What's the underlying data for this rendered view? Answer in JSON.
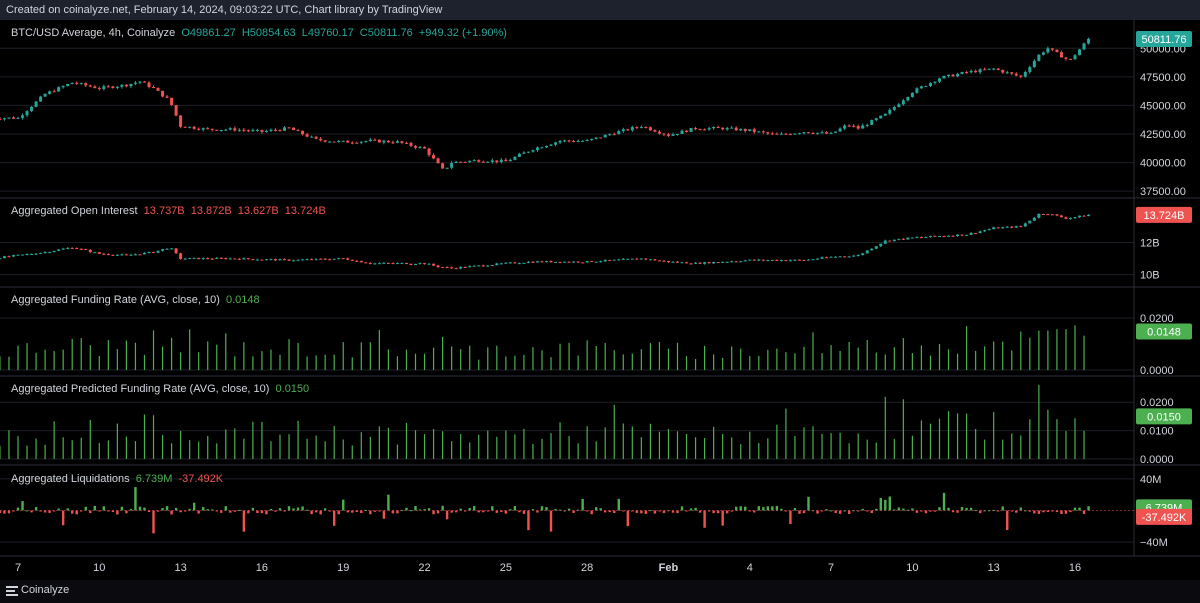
{
  "header": {
    "created_text": "Created on coinalyze.net, February 14, 2024, 09:03:22 UTC, Chart library by TradingView"
  },
  "footer": {
    "brand": "Coinalyze"
  },
  "colors": {
    "up": "#26a69a",
    "down": "#ef5350",
    "funding": "#4caf50",
    "grid": "#1c1f26",
    "background": "#000000"
  },
  "chart_data": [
    {
      "type": "candlestick",
      "title": "BTC/USD Average, 4h, Coinalyze",
      "legend": {
        "o": "O49861.27",
        "h": "H50854.63",
        "l": "L49760.17",
        "c": "C50811.76",
        "chg": "+949.32 (+1.90%)"
      },
      "yticks": [
        "50000.00",
        "47500.00",
        "45000.00",
        "42500.00",
        "40000.00",
        "37500.00"
      ],
      "ytick_values": [
        50000,
        47500,
        45000,
        42500,
        40000,
        37500
      ],
      "ylim": [
        37250,
        51250
      ],
      "last_label": "50811.76",
      "last_value": 50811.76,
      "close_path": [
        [
          6,
          43900
        ],
        [
          7,
          43900
        ],
        [
          8,
          46000
        ],
        [
          9,
          47000
        ],
        [
          10,
          46500
        ],
        [
          11,
          46800
        ],
        [
          11.5,
          47100
        ],
        [
          12,
          46500
        ],
        [
          12.6,
          45400
        ],
        [
          13,
          43200
        ],
        [
          14,
          42900
        ],
        [
          15,
          42900
        ],
        [
          16,
          42700
        ],
        [
          17,
          43000
        ],
        [
          18,
          42000
        ],
        [
          19,
          41800
        ],
        [
          20,
          41900
        ],
        [
          21,
          41800
        ],
        [
          22,
          41200
        ],
        [
          22.7,
          39300
        ],
        [
          23,
          40000
        ],
        [
          24,
          40200
        ],
        [
          25,
          40100
        ],
        [
          26,
          41200
        ],
        [
          27,
          41900
        ],
        [
          28,
          41900
        ],
        [
          29,
          42600
        ],
        [
          30,
          43200
        ],
        [
          31,
          42400
        ],
        [
          32,
          43000
        ],
        [
          33,
          43000
        ],
        [
          34,
          42800
        ],
        [
          35,
          42400
        ],
        [
          36,
          42700
        ],
        [
          37,
          42500
        ],
        [
          37.6,
          43300
        ],
        [
          38,
          43000
        ],
        [
          39,
          44200
        ],
        [
          40,
          46200
        ],
        [
          41,
          47400
        ],
        [
          42,
          47900
        ],
        [
          43,
          48200
        ],
        [
          44,
          47500
        ],
        [
          44.7,
          49500
        ],
        [
          45,
          50000
        ],
        [
          45.8,
          48900
        ],
        [
          46.5,
          50811.76
        ]
      ]
    },
    {
      "type": "candlestick",
      "title": "Aggregated Open Interest",
      "legend": {
        "o": "13.737B",
        "h": "13.872B",
        "l": "13.627B",
        "c": "13.724B"
      },
      "yticks": [
        "12B",
        "10B"
      ],
      "ytick_values": [
        12,
        10
      ],
      "ylim": [
        9.6,
        14.4
      ],
      "last_label": "13.724B",
      "last_value": 13.724,
      "close_path": [
        [
          6,
          11.0
        ],
        [
          8,
          11.4
        ],
        [
          9,
          11.7
        ],
        [
          10,
          11.3
        ],
        [
          11,
          11.2
        ],
        [
          12,
          11.4
        ],
        [
          12.6,
          11.7
        ],
        [
          13,
          11.0
        ],
        [
          15,
          11.0
        ],
        [
          17,
          10.9
        ],
        [
          19,
          11.0
        ],
        [
          20,
          10.7
        ],
        [
          22,
          10.7
        ],
        [
          22.5,
          10.5
        ],
        [
          23,
          10.4
        ],
        [
          25,
          10.7
        ],
        [
          26,
          10.8
        ],
        [
          28,
          10.8
        ],
        [
          30,
          11.0
        ],
        [
          31,
          10.8
        ],
        [
          32,
          10.7
        ],
        [
          34,
          10.9
        ],
        [
          36,
          10.9
        ],
        [
          37,
          11.1
        ],
        [
          38,
          11.2
        ],
        [
          39,
          12.1
        ],
        [
          40,
          12.3
        ],
        [
          41,
          12.4
        ],
        [
          42,
          12.5
        ],
        [
          43,
          12.9
        ],
        [
          44,
          13.0
        ],
        [
          44.7,
          13.8
        ],
        [
          45,
          13.8
        ],
        [
          45.7,
          13.5
        ],
        [
          46.5,
          13.724
        ]
      ]
    },
    {
      "type": "bar",
      "title": "Aggregated Funding Rate (AVG, close, 10)",
      "legend_value": "0.0148",
      "yticks": [
        "0.0200",
        "0.0000"
      ],
      "ytick_values": [
        0.02,
        0
      ],
      "ylim": [
        0,
        0.025
      ],
      "last_label": "0.0148",
      "last_value": 0.0148,
      "baseline_path": [
        [
          6,
          0.0065
        ],
        [
          8,
          0.008
        ],
        [
          9,
          0.0095
        ],
        [
          10,
          0.0085
        ],
        [
          11,
          0.0095
        ],
        [
          12,
          0.0105
        ],
        [
          13,
          0.0085
        ],
        [
          15,
          0.008
        ],
        [
          17,
          0.0085
        ],
        [
          19,
          0.0075
        ],
        [
          21,
          0.008
        ],
        [
          23,
          0.007
        ],
        [
          25,
          0.0075
        ],
        [
          27,
          0.008
        ],
        [
          29,
          0.0085
        ],
        [
          31,
          0.0075
        ],
        [
          33,
          0.007
        ],
        [
          35,
          0.0075
        ],
        [
          37,
          0.008
        ],
        [
          39,
          0.009
        ],
        [
          41,
          0.01
        ],
        [
          43,
          0.011
        ],
        [
          45,
          0.012
        ],
        [
          46.5,
          0.0148
        ]
      ]
    },
    {
      "type": "bar",
      "title": "Aggregated Predicted Funding Rate (AVG, close, 10)",
      "legend_value": "0.0150",
      "yticks": [
        "0.0200",
        "0.0100",
        "0.0000"
      ],
      "ytick_values": [
        0.02,
        0.01,
        0
      ],
      "ylim": [
        0,
        0.025
      ],
      "last_label": "0.0150",
      "last_value": 0.015,
      "baseline_path": [
        [
          6,
          0.0075
        ],
        [
          8,
          0.009
        ],
        [
          9,
          0.0105
        ],
        [
          10,
          0.0095
        ],
        [
          11,
          0.0105
        ],
        [
          12,
          0.011
        ],
        [
          13,
          0.0095
        ],
        [
          15,
          0.009
        ],
        [
          17,
          0.0095
        ],
        [
          19,
          0.0085
        ],
        [
          21,
          0.009
        ],
        [
          23,
          0.008
        ],
        [
          25,
          0.0085
        ],
        [
          27,
          0.009
        ],
        [
          29,
          0.0095
        ],
        [
          31,
          0.0085
        ],
        [
          33,
          0.008
        ],
        [
          35,
          0.0085
        ],
        [
          37,
          0.009
        ],
        [
          39,
          0.01
        ],
        [
          41,
          0.011
        ],
        [
          43,
          0.012
        ],
        [
          45,
          0.013
        ],
        [
          46.5,
          0.015
        ]
      ]
    },
    {
      "type": "bar",
      "title": "Aggregated Liquidations",
      "legend_long": "6.739M",
      "legend_short": "-37.492K",
      "yticks": [
        "40M",
        "−40M"
      ],
      "ytick_values": [
        40,
        -40
      ],
      "ylim": [
        -50,
        50
      ],
      "last_labels": [
        "6.739M",
        "-37.492K"
      ],
      "last_values": [
        6.739,
        -0.037492
      ]
    }
  ],
  "x_axis": {
    "labels": [
      "7",
      "10",
      "13",
      "16",
      "19",
      "22",
      "25",
      "28",
      "Feb",
      "4",
      "7",
      "10",
      "13",
      "16"
    ],
    "positions": [
      7,
      10,
      13,
      16,
      19,
      22,
      25,
      28,
      31,
      34,
      37,
      40,
      43,
      46
    ]
  }
}
